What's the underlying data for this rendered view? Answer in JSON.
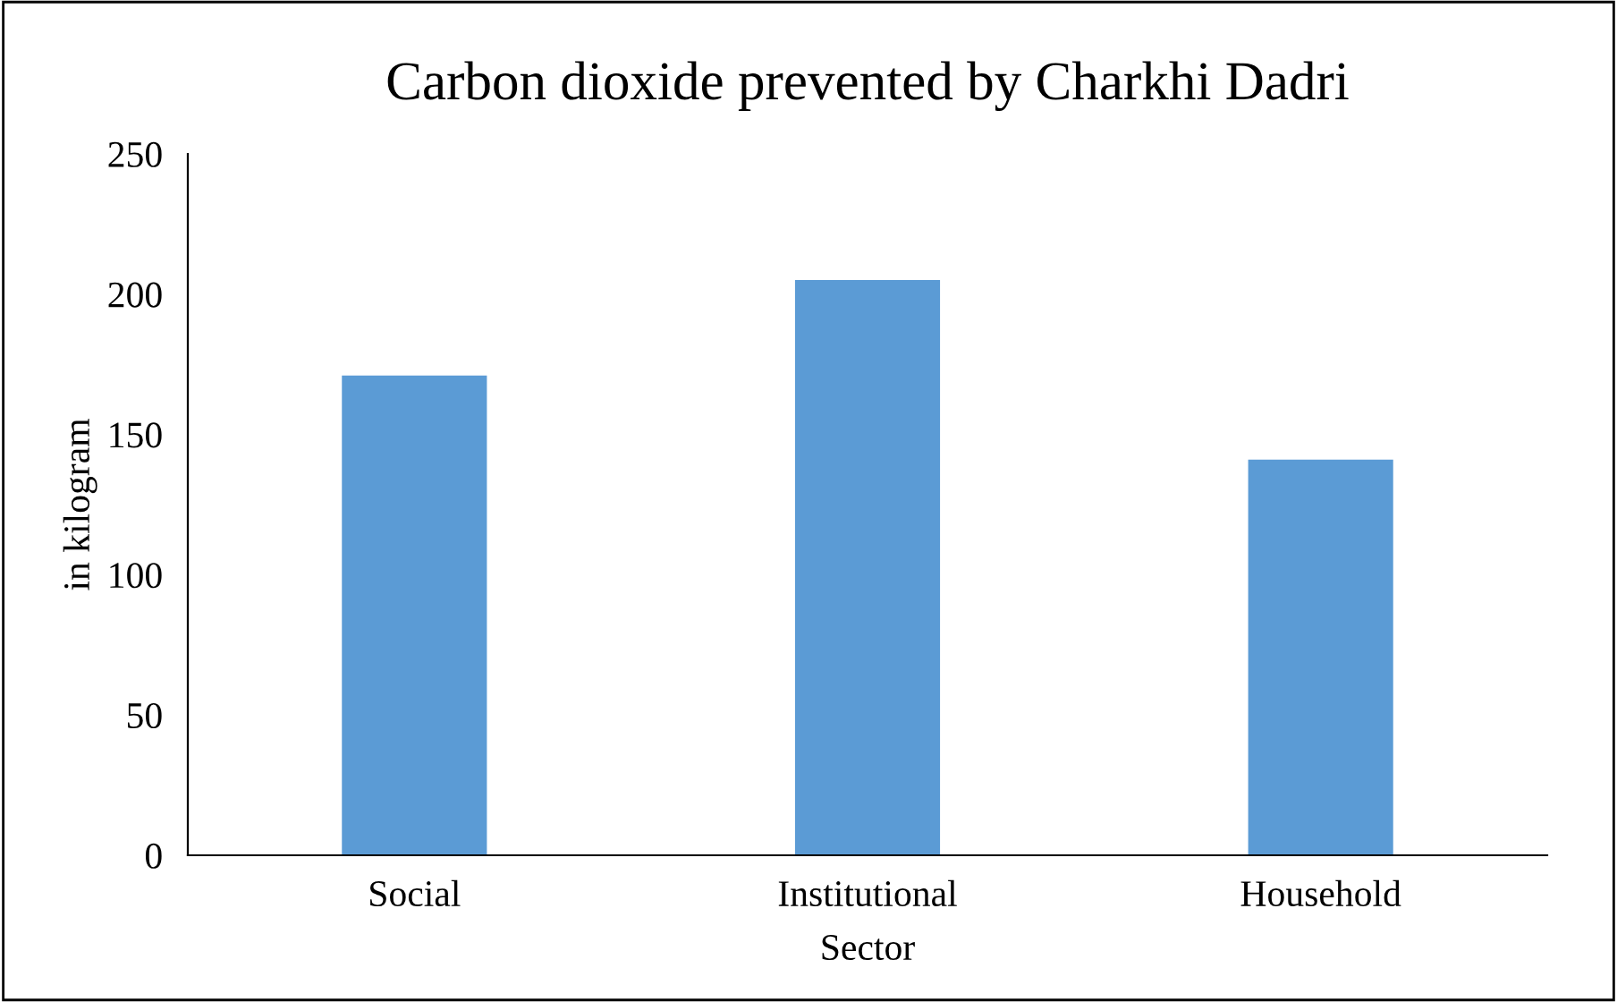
{
  "chart_data": {
    "type": "bar",
    "title": "Carbon dioxide prevented by Charkhi Dadri",
    "xlabel": "Sector",
    "ylabel": "in kilogram",
    "categories": [
      "Social",
      "Institutional",
      "Household"
    ],
    "values": [
      171,
      205,
      141
    ],
    "color": "#5b9bd5",
    "ylim": [
      0,
      250
    ],
    "yticks": [
      0,
      50,
      100,
      150,
      200,
      250
    ],
    "grid": false
  }
}
